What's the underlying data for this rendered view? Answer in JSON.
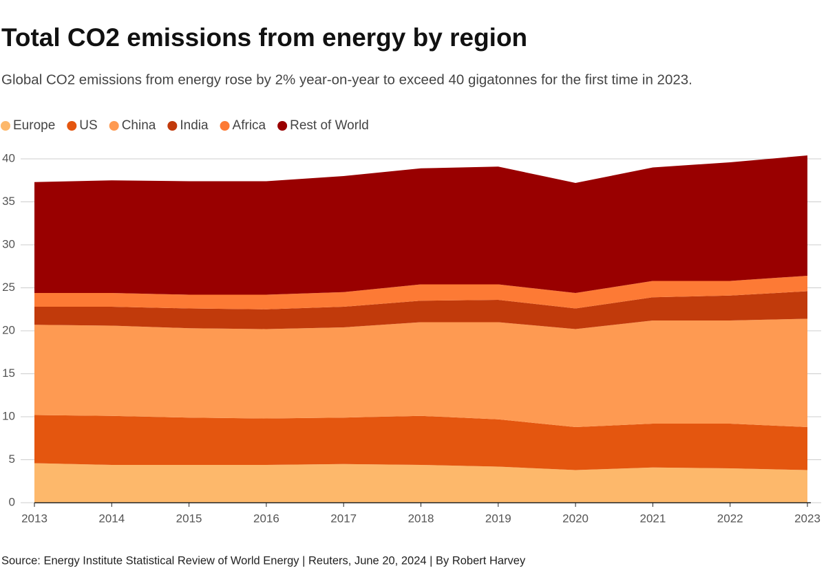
{
  "chart_data": {
    "type": "stacked_area",
    "title": "Total CO2 emissions from energy by region",
    "subtitle": "Global CO2 emissions from energy rose by 2% year-on-year to exceed 40 gigatonnes for the first time in 2023.",
    "source": "Source: Energy Institute Statistical Review of World Energy | Reuters, June 20, 2024 | By Robert Harvey",
    "x": [
      2013,
      2014,
      2015,
      2016,
      2017,
      2018,
      2019,
      2020,
      2021,
      2022,
      2023
    ],
    "xlim": [
      2013,
      2023
    ],
    "xticks": [
      2013,
      2014,
      2015,
      2016,
      2017,
      2018,
      2019,
      2020,
      2021,
      2022,
      2023
    ],
    "ylim": [
      0,
      40
    ],
    "yticks": [
      0,
      5,
      10,
      15,
      20,
      25,
      30,
      35,
      40
    ],
    "grid": true,
    "legend": "top-left",
    "series": [
      {
        "name": "Europe",
        "color": "#fdb86b",
        "values": [
          4.6,
          4.4,
          4.4,
          4.4,
          4.5,
          4.4,
          4.2,
          3.8,
          4.1,
          4.0,
          3.8
        ]
      },
      {
        "name": "US",
        "color": "#e4560f",
        "values": [
          5.6,
          5.7,
          5.5,
          5.4,
          5.4,
          5.7,
          5.5,
          5.0,
          5.1,
          5.2,
          5.0
        ]
      },
      {
        "name": "China",
        "color": "#fe9a52",
        "values": [
          10.5,
          10.5,
          10.4,
          10.4,
          10.5,
          10.9,
          11.3,
          11.4,
          12.0,
          12.0,
          12.6
        ]
      },
      {
        "name": "India",
        "color": "#c13a0b",
        "values": [
          2.1,
          2.2,
          2.3,
          2.3,
          2.4,
          2.5,
          2.6,
          2.4,
          2.7,
          2.9,
          3.2
        ]
      },
      {
        "name": "Africa",
        "color": "#fd7a35",
        "values": [
          1.6,
          1.6,
          1.6,
          1.7,
          1.7,
          1.9,
          1.8,
          1.8,
          1.9,
          1.7,
          1.8
        ]
      },
      {
        "name": "Rest of World",
        "color": "#990000",
        "values": [
          12.9,
          13.1,
          13.2,
          13.2,
          13.5,
          13.5,
          13.7,
          12.8,
          13.2,
          13.8,
          14.0
        ]
      }
    ]
  }
}
